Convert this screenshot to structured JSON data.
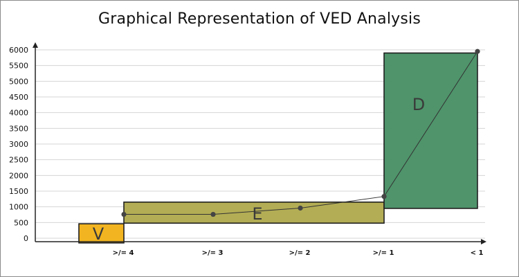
{
  "chart_data": {
    "type": "bar",
    "title": "Graphical Representation of VED Analysis",
    "xlabel": "",
    "ylabel": "",
    "categories": [
      ">/= 4",
      ">/= 3",
      ">/= 2",
      ">/= 1",
      "< 1"
    ],
    "ylim": [
      0,
      6000
    ],
    "yticks": [
      0,
      500,
      1000,
      1500,
      2000,
      2500,
      3000,
      3500,
      4000,
      4500,
      5000,
      5500,
      6000
    ],
    "grid": true,
    "regions": [
      {
        "label": "V",
        "x_from": ">/= 4",
        "x_to": ">/= 4",
        "y_low": -150,
        "y_high": 460,
        "color": "#f2b420",
        "extends_left": true
      },
      {
        "label": "E",
        "x_from": ">/= 4",
        "x_to": ">/= 1",
        "y_low": 480,
        "y_high": 1150,
        "color": "#b3ad55"
      },
      {
        "label": "D",
        "x_from": ">/= 1",
        "x_to": "< 1",
        "y_low": 950,
        "y_high": 5900,
        "color": "#4f946b"
      }
    ],
    "series": [
      {
        "values": [
          760,
          760,
          960,
          1330,
          5950
        ]
      }
    ]
  }
}
